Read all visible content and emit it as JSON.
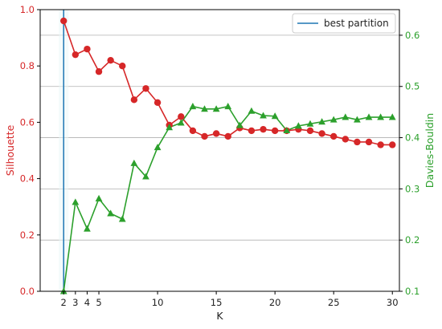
{
  "chart_data": {
    "type": "line",
    "title": "",
    "xlabel": "K",
    "ylabel_left": "Silhouette",
    "ylabel_right": "Davies-Bouldin",
    "xlim": [
      0,
      30.6
    ],
    "ylim_left": [
      0,
      1.0
    ],
    "ylim_right": [
      0.1,
      0.65
    ],
    "x_ticks": [
      2,
      3,
      4,
      5,
      10,
      15,
      20,
      25,
      30
    ],
    "y_left_ticks": [
      "0.0",
      "0.2",
      "0.4",
      "0.6",
      "0.8",
      "1.0"
    ],
    "y_right_ticks": [
      "0.1",
      "0.2",
      "0.3",
      "0.4",
      "0.5",
      "0.6"
    ],
    "grid": "right-axis horizontal",
    "legend_position": "top-right",
    "best_partition": {
      "name": "best partition",
      "x": 2,
      "color": "#1f77b4"
    },
    "x": [
      2,
      3,
      4,
      5,
      6,
      7,
      8,
      9,
      10,
      11,
      12,
      13,
      14,
      15,
      16,
      17,
      18,
      19,
      20,
      21,
      22,
      23,
      24,
      25,
      26,
      27,
      28,
      29,
      30
    ],
    "series": [
      {
        "axis": "left",
        "color": "#d62728",
        "marker": "circle",
        "values": [
          0.96,
          0.84,
          0.86,
          0.78,
          0.82,
          0.8,
          0.68,
          0.72,
          0.67,
          0.59,
          0.62,
          0.57,
          0.55,
          0.56,
          0.55,
          0.58,
          0.57,
          0.575,
          0.57,
          0.57,
          0.575,
          0.57,
          0.56,
          0.55,
          0.54,
          0.53,
          0.53,
          0.52,
          0.52
        ]
      },
      {
        "axis": "right",
        "color": "#2ca02c",
        "marker": "triangle",
        "values": [
          0.1,
          0.274,
          0.222,
          0.281,
          0.252,
          0.241,
          0.35,
          0.324,
          0.381,
          0.42,
          0.429,
          0.461,
          0.456,
          0.456,
          0.461,
          0.424,
          0.452,
          0.443,
          0.442,
          0.414,
          0.423,
          0.427,
          0.431,
          0.435,
          0.44,
          0.435,
          0.44,
          0.44,
          0.44
        ]
      }
    ]
  }
}
